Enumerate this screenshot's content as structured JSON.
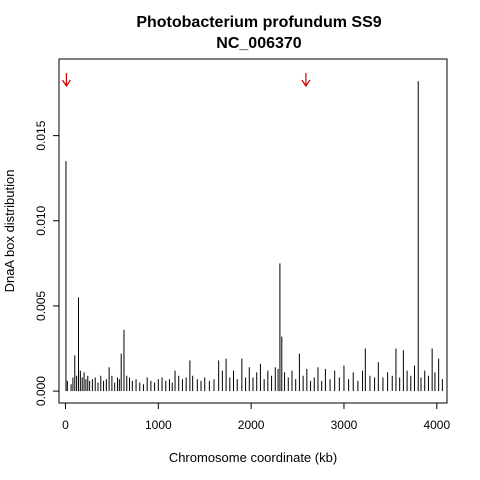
{
  "chart_data": {
    "type": "bar",
    "title": "Photobacterium profundum SS9",
    "subtitle": "NC_006370",
    "xlabel": "Chromosome coordinate (kb)",
    "ylabel": "DnaA box distribution",
    "xlim": [
      -70,
      4110
    ],
    "ylim": [
      -0.0007,
      0.0195
    ],
    "x_ticks": [
      0,
      1000,
      2000,
      3000,
      4000
    ],
    "x_tick_labels": [
      "0",
      "1000",
      "2000",
      "3000",
      "4000"
    ],
    "y_ticks": [
      0,
      0.005,
      0.01,
      0.015
    ],
    "y_tick_labels": [
      "0.000",
      "0.005",
      "0.010",
      "0.015"
    ],
    "grid": false,
    "bar_color": "#000000",
    "arrow_color": "#cc0000",
    "markers_x": [
      10,
      2590
    ],
    "x": [
      5,
      20,
      60,
      80,
      100,
      120,
      140,
      160,
      180,
      200,
      220,
      240,
      260,
      290,
      320,
      350,
      380,
      410,
      440,
      470,
      500,
      530,
      560,
      580,
      600,
      630,
      660,
      690,
      720,
      760,
      800,
      840,
      880,
      920,
      960,
      1000,
      1040,
      1080,
      1120,
      1150,
      1180,
      1220,
      1260,
      1300,
      1340,
      1370,
      1420,
      1460,
      1500,
      1550,
      1600,
      1650,
      1690,
      1730,
      1770,
      1810,
      1850,
      1900,
      1940,
      1980,
      2020,
      2060,
      2100,
      2140,
      2180,
      2220,
      2260,
      2290,
      2310,
      2330,
      2360,
      2400,
      2440,
      2480,
      2520,
      2560,
      2600,
      2640,
      2680,
      2720,
      2760,
      2800,
      2850,
      2900,
      2950,
      3000,
      3050,
      3100,
      3150,
      3200,
      3230,
      3280,
      3330,
      3370,
      3420,
      3470,
      3520,
      3560,
      3600,
      3640,
      3680,
      3720,
      3760,
      3800,
      3830,
      3870,
      3910,
      3950,
      3980,
      4020,
      4060
    ],
    "values": [
      0.0135,
      0.0006,
      0.0004,
      0.0008,
      0.0021,
      0.0009,
      0.0055,
      0.0012,
      0.0008,
      0.0011,
      0.0007,
      0.0009,
      0.0006,
      0.0007,
      0.0008,
      0.0005,
      0.0009,
      0.0006,
      0.0007,
      0.0014,
      0.0009,
      0.0005,
      0.0008,
      0.0007,
      0.0022,
      0.0036,
      0.0009,
      0.0008,
      0.0006,
      0.0007,
      0.0005,
      0.0004,
      0.0008,
      0.0006,
      0.0005,
      0.0007,
      0.0008,
      0.0006,
      0.0007,
      0.0005,
      0.0012,
      0.0009,
      0.0007,
      0.0008,
      0.0018,
      0.0009,
      0.0007,
      0.0006,
      0.0008,
      0.0006,
      0.0007,
      0.0018,
      0.0012,
      0.0019,
      0.0008,
      0.0012,
      0.0007,
      0.0019,
      0.0008,
      0.0014,
      0.0008,
      0.0011,
      0.0016,
      0.0007,
      0.0012,
      0.0009,
      0.0014,
      0.0013,
      0.0075,
      0.0032,
      0.0011,
      0.0008,
      0.0012,
      0.0007,
      0.0022,
      0.0009,
      0.0013,
      0.0006,
      0.0008,
      0.0014,
      0.0006,
      0.0013,
      0.0007,
      0.0012,
      0.0008,
      0.0015,
      0.0007,
      0.0011,
      0.0006,
      0.0012,
      0.0025,
      0.0009,
      0.0008,
      0.0017,
      0.0008,
      0.0011,
      0.0009,
      0.0025,
      0.0008,
      0.0024,
      0.0012,
      0.0009,
      0.0015,
      0.0182,
      0.0008,
      0.0012,
      0.0009,
      0.0025,
      0.0011,
      0.0019,
      0.0007
    ]
  }
}
